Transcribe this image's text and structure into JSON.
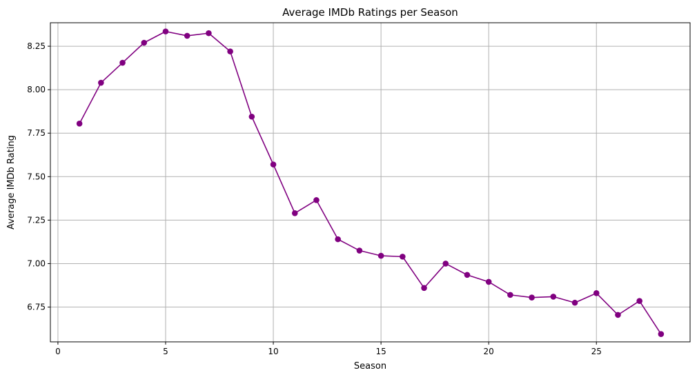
{
  "chart_data": {
    "type": "line",
    "title": "Average IMDb Ratings per Season",
    "xlabel": "Season",
    "ylabel": "Average IMDb Rating",
    "grid": true,
    "xlim": [
      -0.35,
      29.35
    ],
    "ylim": [
      6.55,
      8.385
    ],
    "xticks": [
      0,
      5,
      10,
      15,
      20,
      25
    ],
    "yticks": [
      6.75,
      7.0,
      7.25,
      7.5,
      7.75,
      8.0,
      8.25
    ],
    "xtick_labels": [
      "0",
      "5",
      "10",
      "15",
      "20",
      "25"
    ],
    "ytick_labels": [
      "6.75",
      "7.00",
      "7.25",
      "7.50",
      "7.75",
      "8.00",
      "8.25"
    ],
    "series": [
      {
        "color": "#800080",
        "marker": "circle",
        "x": [
          1,
          2,
          3,
          4,
          5,
          6,
          7,
          8,
          9,
          10,
          11,
          12,
          13,
          14,
          15,
          16,
          17,
          18,
          19,
          20,
          21,
          22,
          23,
          24,
          25,
          26,
          27,
          28
        ],
        "values": [
          7.805,
          8.04,
          8.155,
          8.27,
          8.335,
          8.31,
          8.325,
          8.22,
          7.845,
          7.57,
          7.29,
          7.365,
          7.14,
          7.075,
          7.045,
          7.04,
          6.86,
          7.0,
          6.935,
          6.895,
          6.82,
          6.805,
          6.81,
          6.775,
          6.83,
          6.705,
          6.785,
          6.595
        ]
      }
    ]
  }
}
